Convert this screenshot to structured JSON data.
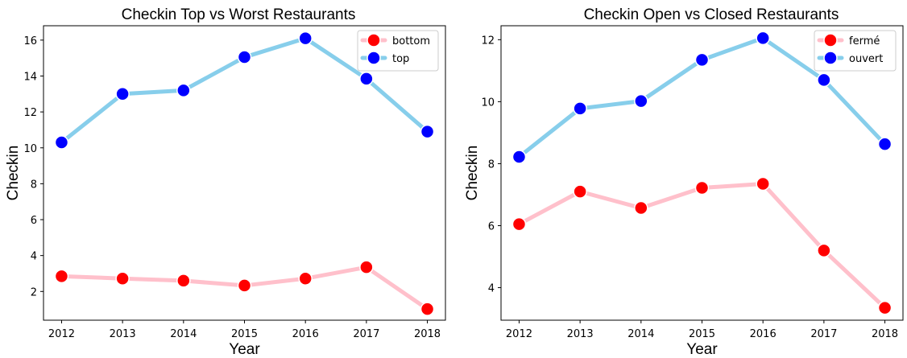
{
  "chart_data": [
    {
      "type": "line",
      "title": "Checkin Top vs Worst Restaurants",
      "xlabel": "Year",
      "ylabel": "Checkin",
      "x": [
        "2012",
        "2013",
        "2014",
        "2015",
        "2016",
        "2017",
        "2018"
      ],
      "yticks": [
        "2",
        "4",
        "6",
        "8",
        "10",
        "12",
        "14",
        "16"
      ],
      "ylim": [
        0.4,
        16.8
      ],
      "grid": false,
      "legend_position": "top-right",
      "series": [
        {
          "name": "bottom",
          "values": [
            2.85,
            2.72,
            2.6,
            2.33,
            2.72,
            3.35,
            1.02
          ],
          "line_color": "#ffc0cb",
          "marker_color": "#ff0000"
        },
        {
          "name": "top",
          "values": [
            10.3,
            13.0,
            13.2,
            15.05,
            16.1,
            13.85,
            10.9
          ],
          "line_color": "#87ceeb",
          "marker_color": "#0000ff"
        }
      ]
    },
    {
      "type": "line",
      "title": "Checkin Open vs Closed Restaurants",
      "xlabel": "Year",
      "ylabel": "Checkin",
      "x": [
        "2012",
        "2013",
        "2014",
        "2015",
        "2016",
        "2017",
        "2018"
      ],
      "yticks": [
        "4",
        "6",
        "8",
        "10",
        "12"
      ],
      "ylim": [
        2.95,
        12.45
      ],
      "grid": false,
      "legend_position": "top-right",
      "series": [
        {
          "name": "fermé",
          "values": [
            6.05,
            7.1,
            6.57,
            7.22,
            7.35,
            5.2,
            3.35
          ],
          "line_color": "#ffc0cb",
          "marker_color": "#ff0000"
        },
        {
          "name": "ouvert",
          "values": [
            8.22,
            9.78,
            10.02,
            11.35,
            12.05,
            10.7,
            8.63
          ],
          "line_color": "#87ceeb",
          "marker_color": "#0000ff"
        }
      ]
    }
  ]
}
